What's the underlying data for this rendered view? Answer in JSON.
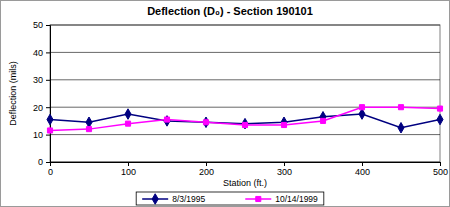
{
  "chart_data": {
    "type": "line",
    "title": "Deflection (D₀) - Section 190101",
    "x_label": "Station (ft.)",
    "y_label": "Deflection (mils)",
    "x": [
      0,
      50,
      100,
      150,
      200,
      250,
      300,
      350,
      400,
      450,
      500
    ],
    "xlim": [
      0,
      500
    ],
    "xticks": [
      0,
      100,
      200,
      300,
      400,
      500
    ],
    "ylim": [
      0,
      50
    ],
    "yticks": [
      0,
      10,
      20,
      30,
      40,
      50
    ],
    "grid": true,
    "legend": "bottom",
    "series": [
      {
        "name": "8/3/1995",
        "color": "#000080",
        "marker": "diamond",
        "values": [
          15.5,
          14.5,
          17.5,
          15,
          14.5,
          14,
          14.5,
          16.5,
          17.5,
          12.5,
          15.5
        ]
      },
      {
        "name": "10/14/1999",
        "color": "#ff00ff",
        "marker": "square",
        "values": [
          11.5,
          12,
          14,
          15.5,
          14.5,
          13.5,
          13.5,
          15,
          20,
          20,
          19.5
        ]
      }
    ]
  }
}
